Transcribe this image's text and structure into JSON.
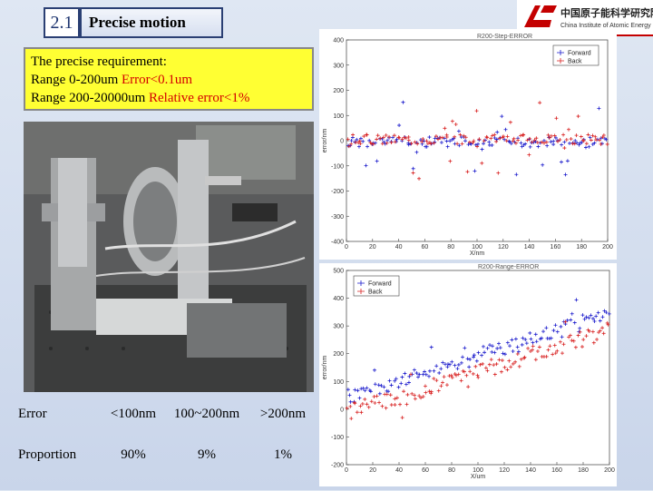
{
  "header": {
    "section_number": "2.1",
    "section_title": "Precise motion"
  },
  "logo": {
    "chinese_name": "中国原子能科学研究院",
    "english_name": "China Institute of Atomic Energy",
    "colors": {
      "brand_red": "#c40000"
    }
  },
  "requirements": {
    "line1": "The precise requirement:",
    "line2_prefix": "Range 0-200um  ",
    "line2_highlight": "Error<0.1um",
    "line3_prefix": "Range 200-20000um  ",
    "line3_highlight": "Relative error<1%",
    "colors": {
      "background": "#ffff33",
      "highlight": "#d40000"
    }
  },
  "stats_table": {
    "rows": [
      [
        "Error",
        "<100nm",
        "100~200nm",
        ">200nm"
      ],
      [
        "Proportion",
        "90%",
        "9%",
        "1%"
      ]
    ]
  },
  "chart_data": [
    {
      "type": "scatter",
      "title": "R200-Step-ERROR",
      "xlabel": "X/nm",
      "ylabel": "error/nm",
      "xlim": [
        0,
        200
      ],
      "ylim": [
        -400,
        400
      ],
      "xticks": [
        0,
        20,
        40,
        60,
        80,
        100,
        120,
        140,
        160,
        180,
        200
      ],
      "yticks": [
        -400,
        -300,
        -200,
        -100,
        0,
        100,
        200,
        300,
        400
      ],
      "legend": [
        "Forward",
        "Back"
      ],
      "legend_position": "top-right",
      "series": [
        {
          "name": "Forward",
          "color": "#1a1acc",
          "marker": "plus"
        },
        {
          "name": "Back",
          "color": "#d82020",
          "marker": "plus"
        }
      ]
    },
    {
      "type": "scatter",
      "title": "R200-Range-ERROR",
      "xlabel": "X/um",
      "ylabel": "error/nm",
      "xlim": [
        0,
        200
      ],
      "ylim": [
        -200,
        500
      ],
      "xticks": [
        0,
        20,
        40,
        60,
        80,
        100,
        120,
        140,
        160,
        180,
        200
      ],
      "yticks": [
        -200,
        -100,
        0,
        100,
        200,
        300,
        400,
        500
      ],
      "legend": [
        "Forward",
        "Back"
      ],
      "legend_position": "top-left",
      "series": [
        {
          "name": "Forward",
          "color": "#1a1acc",
          "marker": "plus"
        },
        {
          "name": "Back",
          "color": "#d82020",
          "marker": "plus"
        }
      ]
    }
  ]
}
